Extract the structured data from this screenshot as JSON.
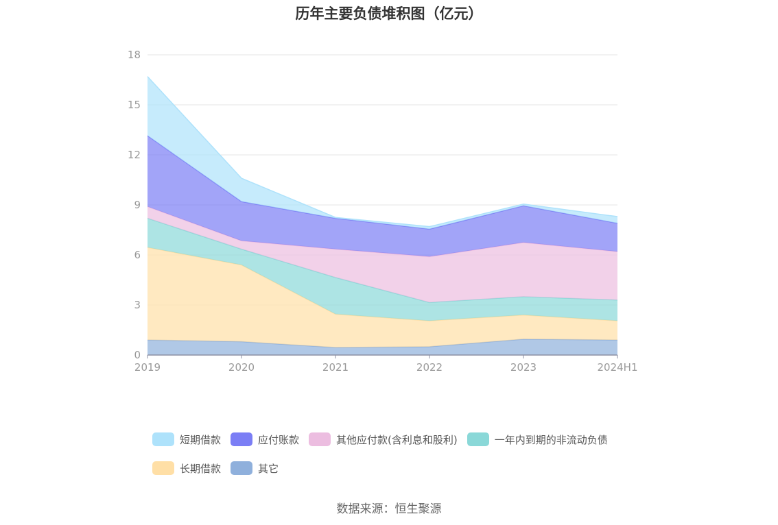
{
  "title": "历年主要负债堆积图（亿元）",
  "source": "数据来源：恒生聚源",
  "chart_data": {
    "type": "area",
    "stacked": true,
    "categories": [
      "2019",
      "2020",
      "2021",
      "2022",
      "2023",
      "2024H1"
    ],
    "ylim": [
      0,
      18
    ],
    "yticks": [
      0,
      3,
      6,
      9,
      12,
      15,
      18
    ],
    "grid": true,
    "legend_position": "bottom",
    "series": [
      {
        "name": "其它",
        "color": "#8fb0dc",
        "values": [
          0.9,
          0.8,
          0.45,
          0.5,
          0.95,
          0.9
        ]
      },
      {
        "name": "长期借款",
        "color": "#ffdfa6",
        "values": [
          5.55,
          4.6,
          2.0,
          1.55,
          1.45,
          1.15
        ]
      },
      {
        "name": "一年内到期的非流动负债",
        "color": "#8ad8d8",
        "values": [
          1.75,
          0.95,
          2.2,
          1.1,
          1.1,
          1.25
        ]
      },
      {
        "name": "其他应付款(含利息和股利)",
        "color": "#ecbde0",
        "values": [
          0.7,
          0.5,
          1.7,
          2.75,
          3.25,
          2.9
        ]
      },
      {
        "name": "应付账款",
        "color": "#7b7ef5",
        "values": [
          4.25,
          2.35,
          1.85,
          1.65,
          2.2,
          1.7
        ]
      },
      {
        "name": "短期借款",
        "color": "#aee2fb",
        "values": [
          3.55,
          1.4,
          0.05,
          0.15,
          0.1,
          0.4
        ]
      }
    ],
    "legend_order": [
      "短期借款",
      "应付账款",
      "其他应付款(含利息和股利)",
      "一年内到期的非流动负债",
      "长期借款",
      "其它"
    ]
  }
}
